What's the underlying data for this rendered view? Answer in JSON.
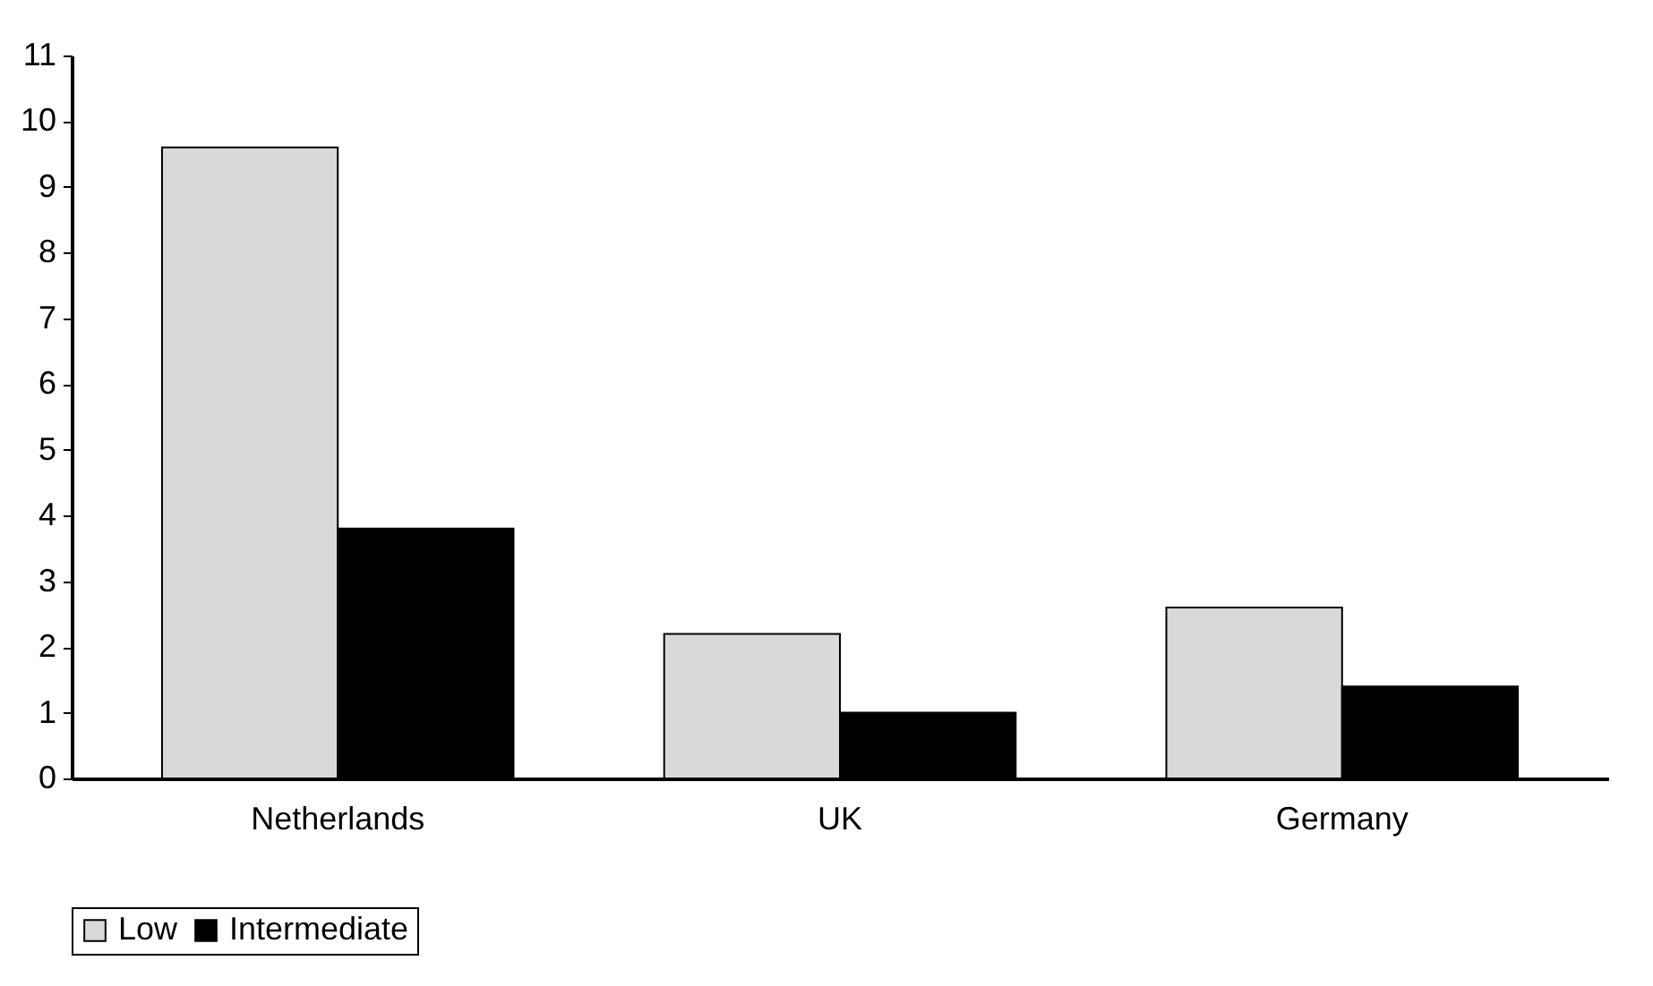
{
  "chart_data": {
    "type": "bar",
    "categories": [
      "Netherlands",
      "UK",
      "Germany"
    ],
    "series": [
      {
        "name": "Low",
        "color": "#d9d9d9",
        "values": [
          9.6,
          2.2,
          2.6
        ]
      },
      {
        "name": "Intermediate",
        "color": "#000000",
        "values": [
          3.8,
          1.0,
          1.4
        ]
      }
    ],
    "ylim": [
      0,
      11
    ],
    "yticks": [
      0,
      1,
      2,
      3,
      4,
      5,
      6,
      7,
      8,
      9,
      10,
      11
    ],
    "grid": false,
    "legend": "bottom"
  }
}
